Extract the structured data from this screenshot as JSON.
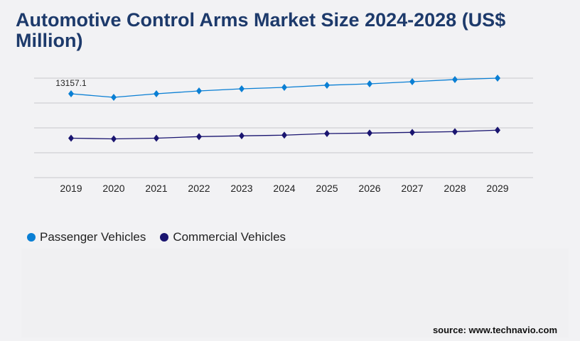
{
  "title": "Automotive Control Arms Market Size 2024-2028 (US$ Million)",
  "source": "source: www.technavio.com",
  "chart_data": {
    "type": "line",
    "title": "Automotive Control Arms Market Size 2024-2028 (US$ Million)",
    "categories": [
      "2019",
      "2020",
      "2021",
      "2022",
      "2023",
      "2024",
      "2025",
      "2026",
      "2027",
      "2028",
      "2029"
    ],
    "series": [
      {
        "name": "Passenger Vehicles",
        "color": "#0a7fd4",
        "values": [
          13157.1,
          12600,
          13157,
          13600,
          13940,
          14160,
          14500,
          14720,
          15050,
          15390,
          15610
        ]
      },
      {
        "name": "Commercial Vehicles",
        "color": "#1a1570",
        "values": [
          6190,
          6080,
          6190,
          6430,
          6560,
          6660,
          6910,
          6990,
          7100,
          7210,
          7440
        ]
      }
    ],
    "data_labels": [
      {
        "series": 0,
        "index": 0,
        "text": "13157.1"
      }
    ],
    "ylim": [
      0,
      15610
    ],
    "grid": true,
    "legend": "bottom-left",
    "xlabel": "",
    "ylabel": ""
  }
}
